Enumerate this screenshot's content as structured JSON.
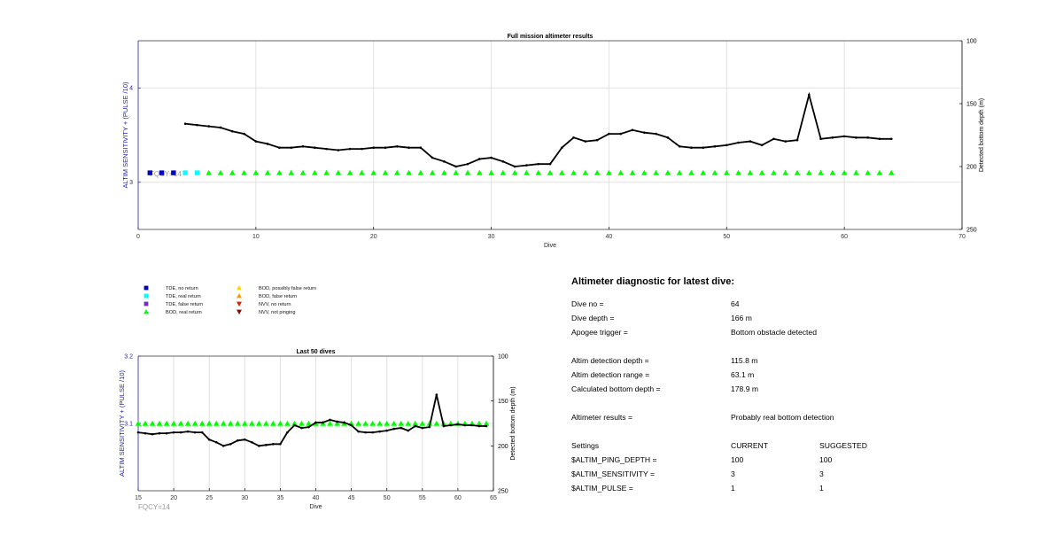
{
  "colors": {
    "left_axis": "#2020b0",
    "fqcy": "#9a9a9a",
    "series_line": "#000000",
    "tde_no_return": "#0000c8",
    "tde_real_return": "#00ffff",
    "tde_false_return": "#7030c0",
    "bod_real_return": "#00ff00",
    "bod_possibly_false": "#ffd700",
    "bod_false": "#ff9900",
    "nvv_no_return": "#e02000",
    "nvv_not_pinging": "#7a1000",
    "grid": "#e2e2e2"
  },
  "chart_data": [
    {
      "type": "scatter",
      "title": "Full mission altimeter results",
      "xlabel": "Dive",
      "ylabel_left": "ALTIM SENSITIVITY + (PULSE /10)",
      "ylabel_right": "Detected bottom depth (m)",
      "xlim": [
        0,
        70
      ],
      "xticks": [
        "0",
        "10",
        "20",
        "30",
        "40",
        "50",
        "60",
        "70"
      ],
      "ylim_left": [
        2.5,
        4.5
      ],
      "yticks_left": [
        "3",
        "4"
      ],
      "ylim_right": [
        100,
        250
      ],
      "right_axis_reversed": true,
      "yticks_right": [
        "100",
        "150",
        "200",
        "250"
      ],
      "grid": true,
      "annotation": "FQCY=14",
      "markers": [
        {
          "name": "TDE, no return",
          "x": [
            1,
            2,
            3
          ],
          "y": [
            3.1,
            3.1,
            3.1
          ]
        },
        {
          "name": "TDE, real return",
          "x": [
            4,
            5
          ],
          "y": [
            3.1,
            3.1
          ]
        },
        {
          "name": "BOD, real return",
          "x": [
            6,
            7,
            8,
            9,
            10,
            11,
            12,
            13,
            14,
            15,
            16,
            17,
            18,
            19,
            20,
            21,
            22,
            23,
            24,
            25,
            26,
            27,
            28,
            29,
            30,
            31,
            32,
            33,
            34,
            35,
            36,
            37,
            38,
            39,
            40,
            41,
            42,
            43,
            44,
            45,
            46,
            47,
            48,
            49,
            50,
            51,
            52,
            53,
            54,
            55,
            56,
            57,
            58,
            59,
            60,
            61,
            62,
            63,
            64
          ],
          "y": [
            3.1,
            3.1,
            3.1,
            3.1,
            3.1,
            3.1,
            3.1,
            3.1,
            3.1,
            3.1,
            3.1,
            3.1,
            3.1,
            3.1,
            3.1,
            3.1,
            3.1,
            3.1,
            3.1,
            3.1,
            3.1,
            3.1,
            3.1,
            3.1,
            3.1,
            3.1,
            3.1,
            3.1,
            3.1,
            3.1,
            3.1,
            3.1,
            3.1,
            3.1,
            3.1,
            3.1,
            3.1,
            3.1,
            3.1,
            3.1,
            3.1,
            3.1,
            3.1,
            3.1,
            3.1,
            3.1,
            3.1,
            3.1,
            3.1,
            3.1,
            3.1,
            3.1,
            3.1,
            3.1,
            3.1,
            3.1,
            3.1,
            3.1,
            3.1
          ]
        }
      ],
      "depth_series": {
        "name": "Detected bottom depth",
        "x": [
          4,
          5,
          6,
          7,
          8,
          9,
          10,
          11,
          12,
          13,
          14,
          15,
          16,
          17,
          18,
          19,
          20,
          21,
          22,
          23,
          24,
          25,
          26,
          27,
          28,
          29,
          30,
          31,
          32,
          33,
          34,
          35,
          36,
          37,
          38,
          39,
          40,
          41,
          42,
          43,
          44,
          45,
          46,
          47,
          48,
          49,
          50,
          51,
          52,
          53,
          54,
          55,
          56,
          57,
          58,
          59,
          60,
          61,
          62,
          63,
          64
        ],
        "y": [
          166,
          167,
          168,
          169,
          172,
          174,
          180,
          182,
          185,
          185,
          184,
          185,
          186,
          187,
          186,
          186,
          185,
          185,
          184,
          185,
          185,
          193,
          196,
          200,
          198,
          194,
          193,
          196,
          200,
          199,
          198,
          198,
          185,
          177,
          180,
          179,
          174,
          174,
          171,
          173,
          174,
          177,
          184,
          185,
          185,
          184,
          183,
          181,
          180,
          183,
          178,
          180,
          179,
          143,
          178,
          177,
          176,
          177,
          177,
          178,
          178
        ]
      }
    },
    {
      "type": "scatter",
      "title": "Last 50 dives",
      "xlabel": "Dive",
      "ylabel_left": "ALTIM SENSITIVITY + (PULSE /10)",
      "ylabel_right": "Detected bottom depth (m)",
      "xlim": [
        15,
        65
      ],
      "xticks": [
        "15",
        "20",
        "25",
        "30",
        "35",
        "40",
        "45",
        "50",
        "55",
        "60",
        "65"
      ],
      "ylim_left": [
        3.0,
        3.2
      ],
      "yticks_left": [
        "3.1",
        "3.2"
      ],
      "ylim_right": [
        100,
        250
      ],
      "right_axis_reversed": true,
      "yticks_right": [
        "100",
        "150",
        "200",
        "250"
      ],
      "grid": true,
      "annotation": "FQCY=14",
      "markers": [
        {
          "name": "BOD, real return",
          "x": [
            15,
            16,
            17,
            18,
            19,
            20,
            21,
            22,
            23,
            24,
            25,
            26,
            27,
            28,
            29,
            30,
            31,
            32,
            33,
            34,
            35,
            36,
            37,
            38,
            39,
            40,
            41,
            42,
            43,
            44,
            45,
            46,
            47,
            48,
            49,
            50,
            51,
            52,
            53,
            54,
            55,
            56,
            57,
            58,
            59,
            60,
            61,
            62,
            63,
            64
          ],
          "y": [
            3.1,
            3.1,
            3.1,
            3.1,
            3.1,
            3.1,
            3.1,
            3.1,
            3.1,
            3.1,
            3.1,
            3.1,
            3.1,
            3.1,
            3.1,
            3.1,
            3.1,
            3.1,
            3.1,
            3.1,
            3.1,
            3.1,
            3.1,
            3.1,
            3.1,
            3.1,
            3.1,
            3.1,
            3.1,
            3.1,
            3.1,
            3.1,
            3.1,
            3.1,
            3.1,
            3.1,
            3.1,
            3.1,
            3.1,
            3.1,
            3.1,
            3.1,
            3.1,
            3.1,
            3.1,
            3.1,
            3.1,
            3.1,
            3.1,
            3.1
          ]
        }
      ],
      "depth_series": {
        "name": "Detected bottom depth",
        "x": [
          15,
          16,
          17,
          18,
          19,
          20,
          21,
          22,
          23,
          24,
          25,
          26,
          27,
          28,
          29,
          30,
          31,
          32,
          33,
          34,
          35,
          36,
          37,
          38,
          39,
          40,
          41,
          42,
          43,
          44,
          45,
          46,
          47,
          48,
          49,
          50,
          51,
          52,
          53,
          54,
          55,
          56,
          57,
          58,
          59,
          60,
          61,
          62,
          63,
          64
        ],
        "y": [
          185,
          186,
          187,
          186,
          186,
          185,
          185,
          184,
          185,
          185,
          193,
          196,
          200,
          198,
          194,
          193,
          196,
          200,
          199,
          198,
          198,
          185,
          177,
          180,
          179,
          174,
          174,
          171,
          173,
          174,
          177,
          184,
          185,
          185,
          184,
          183,
          181,
          180,
          183,
          178,
          180,
          179,
          143,
          178,
          177,
          176,
          177,
          177,
          178,
          178
        ]
      }
    }
  ],
  "legend": {
    "col1": [
      {
        "label": "TDE, no return",
        "shape": "square",
        "color_key": "tde_no_return"
      },
      {
        "label": "TDE, real return",
        "shape": "square",
        "color_key": "tde_real_return"
      },
      {
        "label": "TDE, false return",
        "shape": "square",
        "color_key": "tde_false_return"
      },
      {
        "label": "BOD, real return",
        "shape": "triangle-up",
        "color_key": "bod_real_return"
      }
    ],
    "col2": [
      {
        "label": "BOD, possibly false return",
        "shape": "triangle-up",
        "color_key": "bod_possibly_false"
      },
      {
        "label": "BOD, false return",
        "shape": "triangle-up",
        "color_key": "bod_false"
      },
      {
        "label": "NVV, no return",
        "shape": "triangle-down",
        "color_key": "nvv_no_return"
      },
      {
        "label": "NVV, not pinging",
        "shape": "triangle-down",
        "color_key": "nvv_not_pinging"
      }
    ]
  },
  "diagnostic": {
    "title": "Altimeter diagnostic for latest dive:",
    "dive_no_label": "Dive no =",
    "dive_no_value": "64",
    "dive_depth_label": "Dive depth =",
    "dive_depth_value": "166 m",
    "apogee_label": "Apogee trigger =",
    "apogee_value": "Bottom obstacle detected",
    "det_depth_label": "Altim detection depth =",
    "det_depth_value": "115.8 m",
    "det_range_label": "Altim detection range =",
    "det_range_value": "63.1 m",
    "calc_depth_label": "Calculated bottom depth =",
    "calc_depth_value": "178.9 m",
    "results_label": "Altimeter results =",
    "results_value": "Probably real bottom detection",
    "settings_label": "Settings",
    "current_label": "CURRENT",
    "suggested_label": "SUGGESTED",
    "settings": [
      {
        "name": "$ALTIM_PING_DEPTH =",
        "current": "100",
        "suggested": "100"
      },
      {
        "name": "$ALTIM_SENSITIVITY =",
        "current": "3",
        "suggested": "3"
      },
      {
        "name": "$ALTIM_PULSE =",
        "current": "1",
        "suggested": "1"
      }
    ]
  }
}
